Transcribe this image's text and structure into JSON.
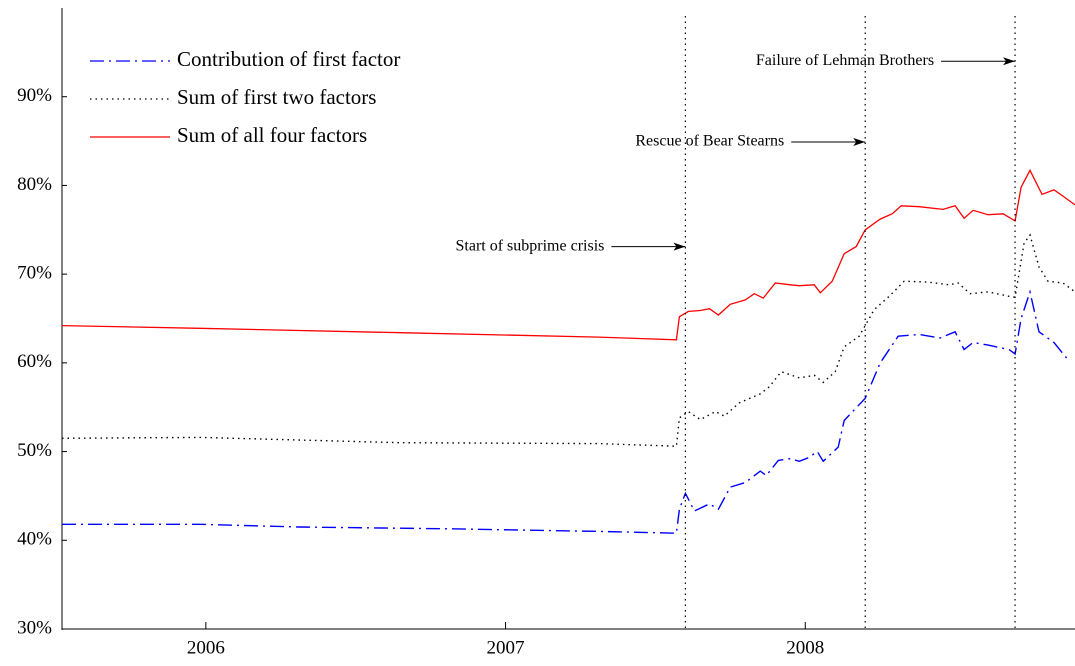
{
  "chart_data": {
    "type": "line",
    "xlim": [
      2005.52,
      2008.9
    ],
    "xticks": [
      {
        "value": 2006,
        "label": "2006"
      },
      {
        "value": 2007,
        "label": "2007"
      },
      {
        "value": 2008,
        "label": "2008"
      }
    ],
    "ylim": [
      30,
      100
    ],
    "yticks": [
      {
        "value": 30,
        "label": "30%"
      },
      {
        "value": 40,
        "label": "40%"
      },
      {
        "value": 50,
        "label": "50%"
      },
      {
        "value": 60,
        "label": "60%"
      },
      {
        "value": 70,
        "label": "70%"
      },
      {
        "value": 80,
        "label": "80%"
      },
      {
        "value": 90,
        "label": "90%"
      }
    ],
    "legend": "top-left",
    "series": [
      {
        "name": "Contribution of first factor",
        "color": "#0000ff",
        "style": "dashdot",
        "x": [
          2005.52,
          2005.98,
          2006.31,
          2006.81,
          2007.31,
          2007.57,
          2007.58,
          2007.6,
          2007.63,
          2007.68,
          2007.71,
          2007.75,
          2007.8,
          2007.85,
          2007.87,
          2007.91,
          2007.95,
          2007.98,
          2008.01,
          2008.04,
          2008.06,
          2008.11,
          2008.13,
          2008.2,
          2008.25,
          2008.31,
          2008.38,
          2008.45,
          2008.5,
          2008.53,
          2008.56,
          2008.61,
          2008.68,
          2008.7,
          2008.72,
          2008.75,
          2008.78,
          2008.83,
          2008.88
        ],
        "values": [
          41.8,
          41.8,
          41.5,
          41.3,
          41.0,
          40.8,
          43.5,
          45.3,
          43.3,
          44.1,
          43.5,
          46.0,
          46.5,
          47.8,
          47.3,
          49.0,
          49.2,
          48.9,
          49.3,
          50.0,
          48.9,
          50.5,
          53.5,
          56.0,
          60.0,
          63.0,
          63.2,
          62.8,
          63.5,
          61.5,
          62.3,
          62.0,
          61.5,
          61.0,
          65.0,
          68.0,
          63.5,
          62.3,
          60.2
        ]
      },
      {
        "name": "Sum of first two factors",
        "color": "#000000",
        "style": "dotted",
        "x": [
          2005.52,
          2005.98,
          2006.65,
          2007.31,
          2007.57,
          2007.58,
          2007.61,
          2007.65,
          2007.7,
          2007.73,
          2007.78,
          2007.85,
          2007.88,
          2007.92,
          2007.98,
          2008.03,
          2008.06,
          2008.1,
          2008.13,
          2008.18,
          2008.23,
          2008.28,
          2008.33,
          2008.41,
          2008.48,
          2008.51,
          2008.55,
          2008.61,
          2008.68,
          2008.7,
          2008.73,
          2008.75,
          2008.78,
          2008.81,
          2008.86,
          2008.9
        ],
        "values": [
          51.5,
          51.6,
          51.0,
          50.9,
          50.6,
          53.8,
          54.5,
          53.6,
          54.5,
          54.0,
          55.5,
          56.5,
          57.3,
          59.0,
          58.3,
          58.6,
          57.8,
          59.0,
          61.8,
          63.0,
          66.0,
          67.5,
          69.2,
          69.1,
          68.8,
          69.0,
          67.8,
          68.0,
          67.5,
          67.4,
          73.5,
          74.4,
          70.8,
          69.2,
          69.0,
          68.0
        ]
      },
      {
        "name": "Sum of all four factors",
        "color": "#ff0000",
        "style": "solid",
        "x": [
          2005.52,
          2005.98,
          2006.65,
          2007.31,
          2007.57,
          2007.58,
          2007.61,
          2007.65,
          2007.68,
          2007.71,
          2007.75,
          2007.8,
          2007.83,
          2007.86,
          2007.9,
          2007.95,
          2007.98,
          2008.03,
          2008.05,
          2008.09,
          2008.13,
          2008.17,
          2008.2,
          2008.25,
          2008.29,
          2008.32,
          2008.38,
          2008.46,
          2008.5,
          2008.53,
          2008.56,
          2008.61,
          2008.66,
          2008.7,
          2008.72,
          2008.75,
          2008.79,
          2008.83,
          2008.86,
          2008.9
        ],
        "values": [
          64.2,
          63.9,
          63.4,
          62.9,
          62.6,
          65.2,
          65.8,
          65.9,
          66.1,
          65.4,
          66.6,
          67.1,
          67.8,
          67.3,
          69.0,
          68.8,
          68.7,
          68.8,
          67.9,
          69.2,
          72.3,
          73.1,
          75.0,
          76.2,
          76.8,
          77.7,
          77.6,
          77.3,
          77.7,
          76.3,
          77.2,
          76.7,
          76.8,
          76.0,
          79.8,
          81.7,
          79.0,
          79.5,
          78.8,
          77.8
        ]
      }
    ],
    "annotations": [
      {
        "text": "Start of subprime crisis",
        "x": 2007.6,
        "y": 73.1
      },
      {
        "text": "Rescue of Bear Stearns",
        "x": 2008.2,
        "y": 84.9
      },
      {
        "text": "Failure of Lehman Brothers",
        "x": 2008.7,
        "y": 94.0
      }
    ]
  }
}
